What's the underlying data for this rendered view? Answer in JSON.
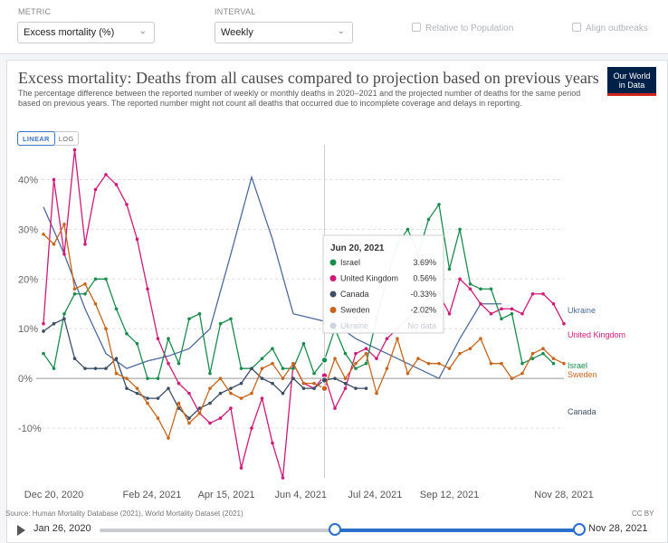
{
  "controls": {
    "metric_label": "METRIC",
    "metric_value": "Excess mortality (%)",
    "interval_label": "INTERVAL",
    "interval_value": "Weekly",
    "relative_label": "Relative to Population",
    "align_label": "Align outbreaks"
  },
  "card": {
    "title": "Excess mortality: Deaths from all causes compared to projection based on previous years",
    "subtitle": "The percentage difference between the reported number of weekly or monthly deaths in 2020–2021 and the projected number of deaths for the same period based on previous years. The reported number might not count all deaths that occurred due to incomplete coverage and delays in reporting.",
    "logo_line1": "Our World",
    "logo_line2": "in Data",
    "scale_linear": "LINEAR",
    "scale_log": "LOG"
  },
  "footer": {
    "source": "Source: Human Mortality Database (2021), World Mortality Dataset (2021)",
    "license": "CC BY"
  },
  "timeline": {
    "start_date": "Jan 26, 2020",
    "end_date": "Nov 28, 2021"
  },
  "tooltip": {
    "date": "Jun 20, 2021",
    "rows": [
      {
        "name": "Israel",
        "value": "3.69%",
        "color": "#1a8c4e"
      },
      {
        "name": "United Kingdom",
        "value": "0.56%",
        "color": "#d11a77"
      },
      {
        "name": "Canada",
        "value": "-0.33%",
        "color": "#3c4e66"
      },
      {
        "name": "Sweden",
        "value": "-2.02%",
        "color": "#c6651b"
      },
      {
        "name": "Ukraine",
        "value": "No data",
        "color": "#cfd4dc"
      }
    ]
  },
  "chart_data": {
    "type": "line",
    "title": "Excess mortality: Deaths from all causes compared to projection based on previous years",
    "x_ticks": [
      "Dec 20, 2020",
      "Feb 24, 2021",
      "Apr 15, 2021",
      "Jun 4, 2021",
      "Jul 24, 2021",
      "Sep 12, 2021",
      "Nov 28, 2021"
    ],
    "x_tick_days": [
      0,
      66,
      116,
      166,
      216,
      266,
      343
    ],
    "y_ticks": [
      "40%",
      "30%",
      "20%",
      "10%",
      "0%",
      "-10%"
    ],
    "y_tick_values": [
      40,
      30,
      20,
      10,
      0,
      -10
    ],
    "ylim": [
      -20,
      47
    ],
    "xlim": [
      -7,
      343
    ],
    "grid": true,
    "hover_day": 182,
    "series": [
      {
        "name": "Ukraine",
        "color": "#4c6a9c",
        "x": [
          -7,
          7,
          21,
          35,
          49,
          63,
          77,
          91,
          105,
          119,
          133,
          147,
          161,
          175,
          189,
          203,
          217,
          231,
          245,
          259,
          273,
          287,
          301
        ],
        "y": [
          34.5,
          25,
          14,
          5,
          2,
          3.5,
          4.5,
          6,
          10,
          25,
          40.5,
          28,
          13,
          12,
          11,
          8,
          6,
          4,
          2,
          0,
          8,
          15,
          15
        ]
      },
      {
        "name": "United Kingdom",
        "color": "#d11a77",
        "x": [
          -7,
          0,
          7,
          14,
          21,
          28,
          35,
          42,
          49,
          56,
          63,
          70,
          77,
          84,
          91,
          98,
          105,
          112,
          119,
          126,
          133,
          140,
          147,
          154,
          161,
          168,
          175,
          182,
          189,
          196,
          203,
          210,
          217,
          224,
          231,
          238,
          245,
          252,
          259,
          266,
          273,
          280,
          287,
          294,
          301,
          308,
          315,
          322,
          329,
          336,
          343
        ],
        "y": [
          11,
          40,
          25,
          46,
          27,
          38,
          41,
          39,
          35,
          28,
          18,
          8,
          3,
          -1,
          -3,
          -7,
          -9,
          -8,
          -6,
          -18,
          -10,
          -4,
          -13,
          -20,
          3,
          -1,
          -2,
          0.56,
          -6,
          -2,
          5,
          6,
          4,
          8,
          10,
          12,
          14,
          16,
          17,
          13,
          20,
          18,
          15,
          13,
          14,
          14,
          13,
          17,
          17,
          15,
          11
        ]
      },
      {
        "name": "Israel",
        "color": "#1a8c4e",
        "x": [
          -7,
          0,
          7,
          14,
          21,
          28,
          35,
          42,
          49,
          56,
          63,
          70,
          77,
          84,
          91,
          98,
          105,
          112,
          119,
          126,
          133,
          140,
          147,
          154,
          161,
          168,
          175,
          182,
          189,
          196,
          203,
          210,
          217,
          224,
          231,
          238,
          245,
          252,
          259,
          266,
          273,
          280,
          287,
          294,
          301,
          308,
          315,
          322,
          329,
          336
        ],
        "y": [
          5,
          2,
          13,
          17,
          17,
          20,
          20,
          14,
          9,
          7,
          0,
          0,
          8,
          3,
          12,
          13,
          1,
          11,
          12,
          2,
          2,
          4,
          6,
          2,
          2,
          7,
          1,
          3.69,
          10,
          5,
          2,
          3,
          12,
          20,
          27,
          30,
          25,
          32,
          35,
          22,
          30,
          19,
          18,
          18,
          12,
          13,
          3,
          4,
          5,
          3
        ]
      },
      {
        "name": "Canada",
        "color": "#3c4e66",
        "x": [
          -7,
          0,
          7,
          14,
          21,
          28,
          35,
          42,
          49,
          56,
          63,
          70,
          77,
          84,
          91,
          98,
          105,
          112,
          119,
          126,
          133,
          140,
          147,
          154,
          161,
          168,
          175,
          182,
          189,
          196,
          203,
          210
        ],
        "y": [
          9.5,
          11,
          12,
          4,
          2,
          2,
          2,
          4,
          -2,
          -3,
          -4,
          -4,
          -2,
          -6,
          -8,
          -6,
          -5,
          -3,
          -2,
          -1,
          2,
          0,
          -1,
          -3,
          0,
          -2,
          -2,
          -0.33,
          0,
          -1,
          -2,
          -2
        ]
      },
      {
        "name": "Sweden",
        "color": "#c6651b",
        "x": [
          -7,
          0,
          7,
          14,
          21,
          28,
          35,
          42,
          49,
          56,
          63,
          70,
          77,
          84,
          91,
          98,
          105,
          112,
          119,
          126,
          133,
          140,
          147,
          154,
          161,
          168,
          175,
          182,
          189,
          196,
          203,
          210,
          217,
          224,
          231,
          238,
          245,
          252,
          259,
          266,
          273,
          280,
          287,
          294,
          301,
          308,
          315,
          322,
          329,
          336,
          343
        ],
        "y": [
          29,
          27,
          31,
          18,
          19,
          15,
          10,
          1,
          0,
          -2,
          -5,
          -8,
          -12,
          -5,
          -9,
          -7,
          -2,
          0,
          -3,
          -4,
          -3,
          2,
          3,
          0,
          3,
          -1,
          -1,
          -2.02,
          4,
          0,
          3,
          5,
          -3,
          2,
          8,
          1,
          4,
          3,
          3,
          2,
          5,
          6,
          8,
          3,
          3,
          0,
          1,
          5,
          6,
          4,
          3
        ]
      }
    ]
  }
}
